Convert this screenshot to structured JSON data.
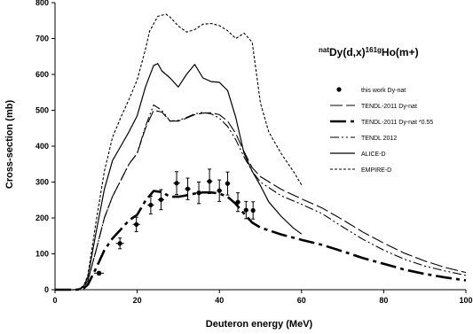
{
  "chart_data": {
    "type": "line",
    "title": {
      "prefix": "nat",
      "main1": "Dy(d,x)",
      "sup": "161g",
      "main2": "Ho(m+)"
    },
    "xlabel": "Deuteron energy (MeV)",
    "ylabel": "Cross-section (mb)",
    "xlim": [
      0,
      100
    ],
    "ylim": [
      0,
      800
    ],
    "xticks": [
      0,
      20,
      40,
      60,
      80,
      100
    ],
    "yticks": [
      0,
      100,
      200,
      300,
      400,
      500,
      600,
      700,
      800
    ],
    "grid": false,
    "legend_position": "right",
    "points": {
      "name": "this work Dy-nat",
      "x": [
        10.7,
        15.8,
        19.8,
        23.3,
        25.8,
        29.6,
        32.3,
        35.0,
        37.6,
        40.0,
        42.0,
        44.5,
        46.5,
        48.2
      ],
      "y": [
        46,
        129,
        182,
        236,
        251,
        297,
        281,
        270,
        302,
        276,
        296,
        244,
        222,
        221
      ],
      "yerr": [
        5,
        15,
        20,
        25,
        28,
        32,
        30,
        30,
        34,
        30,
        32,
        26,
        24,
        24
      ],
      "xerr": [
        1.2,
        1.0,
        0.9,
        0.8,
        0.8,
        0.8,
        0.7,
        0.7,
        0.7,
        0.6,
        0.6,
        0.6,
        0.5,
        0.5
      ]
    },
    "series": [
      {
        "name": "TENDL-2011 Dy-nat",
        "style": "longdash",
        "x": [
          0,
          5,
          6,
          7,
          8,
          10,
          12,
          14,
          16,
          18,
          20,
          22,
          24,
          26,
          28,
          30,
          32,
          34,
          36,
          38,
          40,
          42,
          44,
          46,
          48,
          50,
          55,
          60,
          65,
          70,
          75,
          80,
          85,
          90,
          95,
          100
        ],
        "y": [
          0,
          0,
          2,
          8,
          25,
          110,
          200,
          260,
          305,
          350,
          380,
          450,
          500,
          495,
          470,
          470,
          478,
          488,
          492,
          493,
          488,
          470,
          435,
          385,
          340,
          315,
          280,
          253,
          228,
          195,
          160,
          130,
          102,
          80,
          62,
          48
        ]
      },
      {
        "name": "TENDL-2011 Dy-nat *0.55",
        "style": "thick-dashdot",
        "x": [
          0,
          5,
          6,
          7,
          8,
          10,
          12,
          14,
          16,
          18,
          20,
          22,
          24,
          26,
          28,
          30,
          32,
          34,
          36,
          38,
          40,
          42,
          44,
          46,
          48,
          50,
          55,
          60,
          65,
          70,
          75,
          80,
          85,
          90,
          95,
          100
        ],
        "y": [
          0,
          0,
          1,
          4,
          14,
          60,
          110,
          143,
          168,
          193,
          209,
          248,
          275,
          272,
          259,
          259,
          263,
          268,
          271,
          271,
          268,
          259,
          239,
          212,
          187,
          173,
          154,
          139,
          125,
          107,
          88,
          72,
          56,
          44,
          34,
          26
        ]
      },
      {
        "name": "TENDL 2012",
        "style": "dashdotdot",
        "x": [
          0,
          5,
          6,
          7,
          8,
          10,
          12,
          14,
          16,
          18,
          20,
          22,
          24,
          26,
          28,
          30,
          32,
          34,
          36,
          38,
          40,
          42,
          44,
          46,
          48,
          50,
          55,
          60,
          65,
          70,
          75,
          80,
          85,
          90,
          95,
          100
        ],
        "y": [
          0,
          0,
          2,
          8,
          25,
          110,
          200,
          260,
          305,
          350,
          380,
          455,
          515,
          500,
          470,
          472,
          480,
          490,
          494,
          490,
          478,
          455,
          418,
          370,
          330,
          300,
          262,
          238,
          212,
          175,
          140,
          110,
          85,
          66,
          52,
          40
        ]
      },
      {
        "name": "ALICE-D",
        "style": "solid",
        "x": [
          0,
          5,
          6,
          7,
          8,
          10,
          12,
          14,
          16,
          18,
          20,
          22,
          24,
          25,
          26,
          28,
          30,
          32,
          34,
          36,
          38,
          40,
          42,
          44,
          46,
          48,
          50,
          52,
          55,
          58,
          60
        ],
        "y": [
          0,
          0,
          3,
          10,
          35,
          160,
          280,
          360,
          400,
          440,
          485,
          565,
          625,
          630,
          610,
          590,
          565,
          600,
          628,
          590,
          580,
          578,
          555,
          480,
          380,
          330,
          290,
          245,
          205,
          172,
          155
        ]
      },
      {
        "name": "EMPIRE-D",
        "style": "shortdash",
        "x": [
          0,
          5,
          6,
          7,
          8,
          10,
          12,
          14,
          16,
          18,
          20,
          22,
          23,
          25,
          27,
          28,
          30,
          32,
          34,
          36,
          38,
          40,
          42,
          44,
          46,
          48,
          50,
          52,
          55,
          58,
          60
        ],
        "y": [
          0,
          0,
          3,
          12,
          40,
          190,
          330,
          425,
          480,
          530,
          585,
          670,
          720,
          762,
          768,
          760,
          735,
          718,
          725,
          740,
          742,
          736,
          722,
          700,
          715,
          690,
          520,
          440,
          380,
          330,
          292
        ]
      }
    ]
  }
}
